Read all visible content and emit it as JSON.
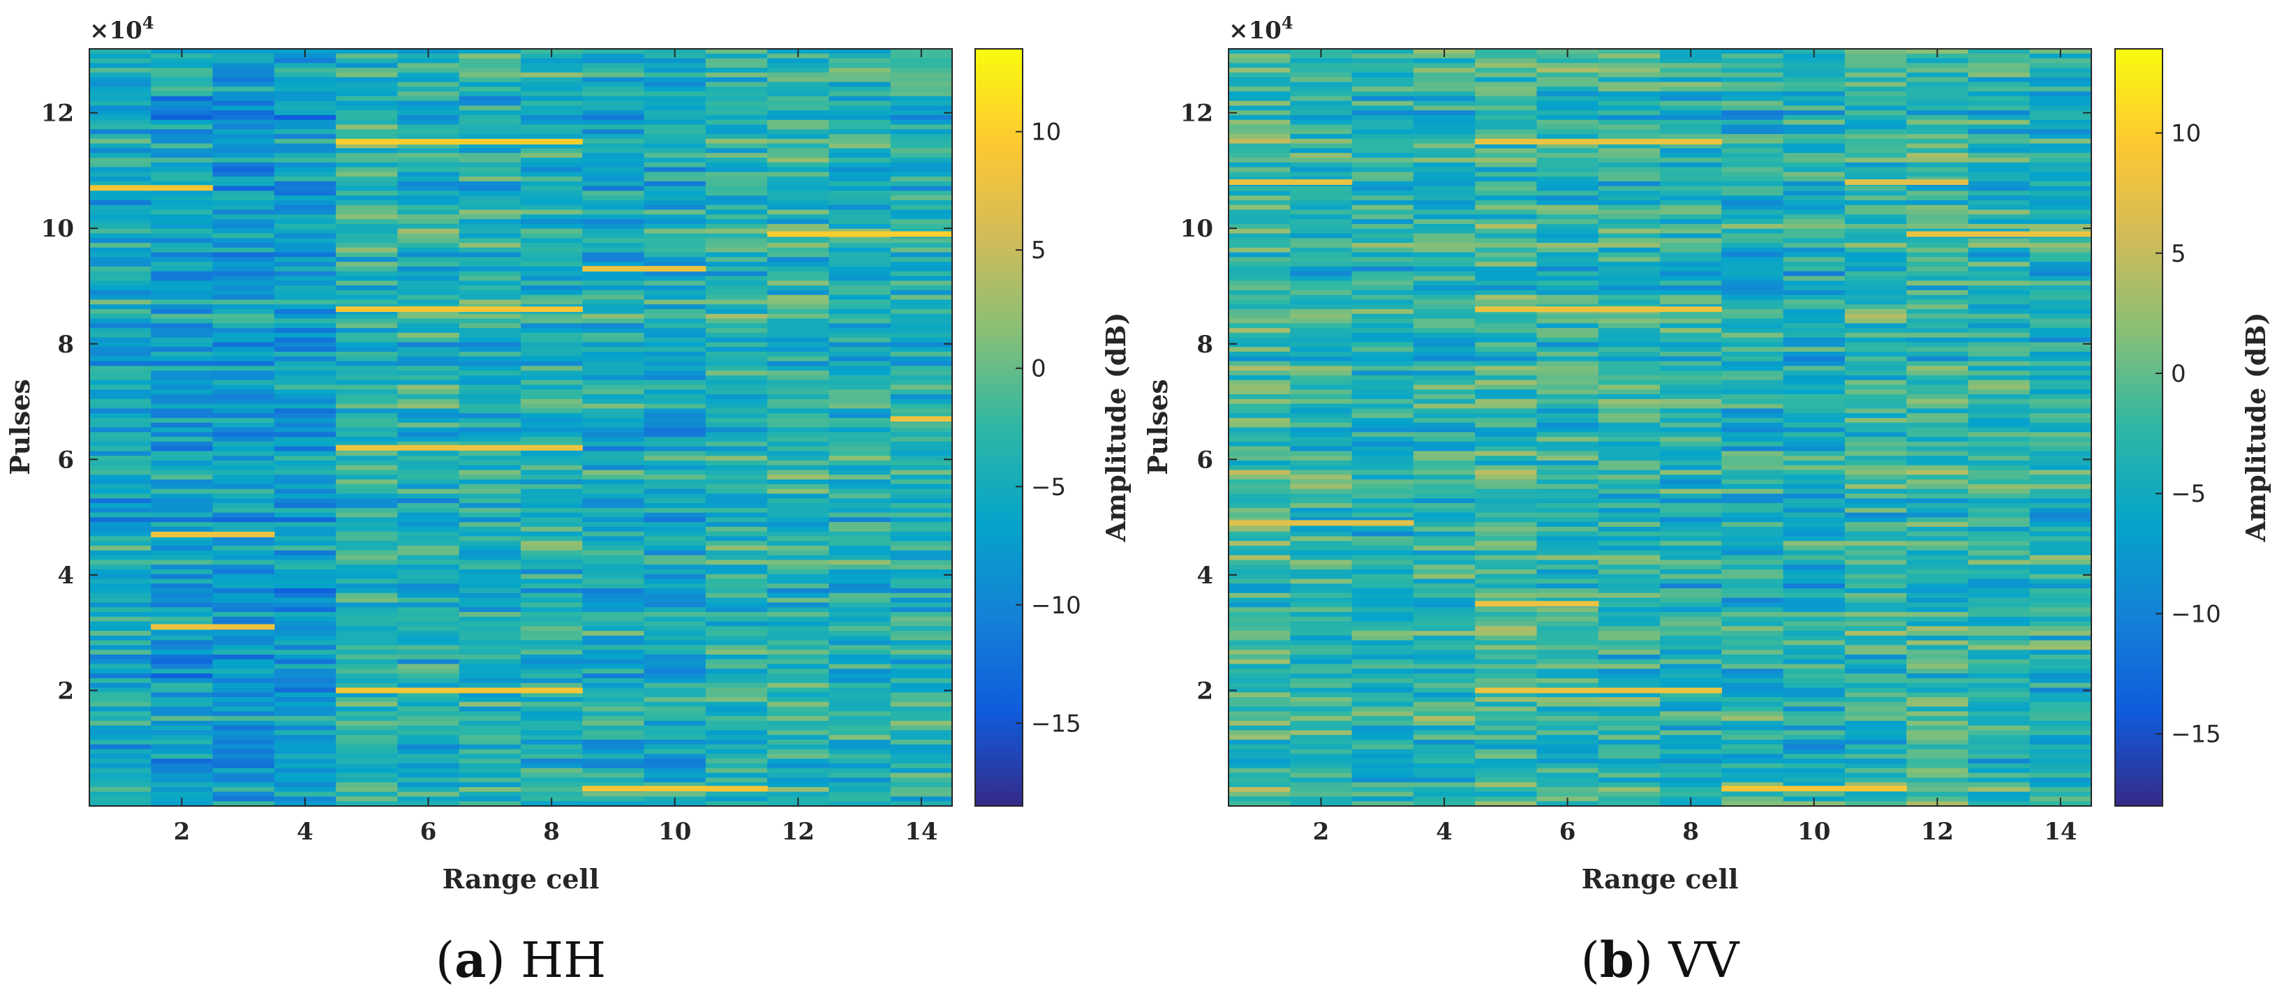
{
  "chart_data": [
    {
      "type": "heatmap",
      "panel": "(a)",
      "caption_letter": "a",
      "caption_text": "HH",
      "xlabel": "Range cell",
      "ylabel": "Pulses",
      "y_multiplier_label": "×10",
      "y_multiplier_exp": "4",
      "xlim": [
        0.5,
        14.5
      ],
      "ylim": [
        0,
        131072
      ],
      "x_ticks": [
        2,
        4,
        6,
        8,
        10,
        12,
        14
      ],
      "x_tick_labels": [
        "2",
        "4",
        "6",
        "8",
        "10",
        "12",
        "14"
      ],
      "y_ticks": [
        20000,
        40000,
        60000,
        80000,
        100000,
        120000
      ],
      "y_tick_labels": [
        "2",
        "4",
        "6",
        "8",
        "10",
        "12"
      ],
      "range_cells": 14,
      "colorbar": {
        "label": "Amplitude (dB)",
        "limits": [
          -18.5,
          13.5
        ],
        "ticks": [
          10,
          5,
          0,
          -5,
          -10,
          -15
        ],
        "tick_labels": [
          "10",
          "5",
          "0",
          "−5",
          "−10",
          "−15"
        ]
      },
      "cell_mean_db": [
        -5.5,
        -7.0,
        -7.5,
        -7.5,
        -3.5,
        -4.0,
        -4.0,
        -4.0,
        -5.0,
        -5.5,
        -3.5,
        -3.5,
        -4.0,
        -4.0
      ],
      "bright_streaks": [
        {
          "cells": [
            1,
            2
          ],
          "pulse": 107000,
          "db": 9
        },
        {
          "cells": [
            5,
            6,
            7,
            8
          ],
          "pulse": 115000,
          "db": 10
        },
        {
          "cells": [
            12,
            13,
            14
          ],
          "pulse": 99000,
          "db": 10
        },
        {
          "cells": [
            5,
            6,
            7,
            8
          ],
          "pulse": 86000,
          "db": 9
        },
        {
          "cells": [
            5,
            6,
            7,
            8
          ],
          "pulse": 62000,
          "db": 8
        },
        {
          "cells": [
            2,
            3
          ],
          "pulse": 47000,
          "db": 8
        },
        {
          "cells": [
            2,
            3
          ],
          "pulse": 31000,
          "db": 8
        },
        {
          "cells": [
            5,
            6,
            7,
            8
          ],
          "pulse": 20000,
          "db": 9
        },
        {
          "cells": [
            9,
            10,
            11
          ],
          "pulse": 3000,
          "db": 9
        },
        {
          "cells": [
            14
          ],
          "pulse": 67000,
          "db": 8
        },
        {
          "cells": [
            9,
            10
          ],
          "pulse": 93000,
          "db": 8
        }
      ]
    },
    {
      "type": "heatmap",
      "panel": "(b)",
      "caption_letter": "b",
      "caption_text": "VV",
      "xlabel": "Range cell",
      "ylabel": "Pulses",
      "y_multiplier_label": "×10",
      "y_multiplier_exp": "4",
      "xlim": [
        0.5,
        14.5
      ],
      "ylim": [
        0,
        131072
      ],
      "x_ticks": [
        2,
        4,
        6,
        8,
        10,
        12,
        14
      ],
      "x_tick_labels": [
        "2",
        "4",
        "6",
        "8",
        "10",
        "12",
        "14"
      ],
      "y_ticks": [
        20000,
        40000,
        60000,
        80000,
        100000,
        120000
      ],
      "y_tick_labels": [
        "2",
        "4",
        "6",
        "8",
        "10",
        "12"
      ],
      "range_cells": 14,
      "colorbar": {
        "label": "Amplitude (dB)",
        "limits": [
          -18,
          13.5
        ],
        "ticks": [
          10,
          5,
          0,
          -5,
          -10,
          -15
        ],
        "tick_labels": [
          "10",
          "5",
          "0",
          "−5",
          "−10",
          "−15"
        ]
      },
      "cell_mean_db": [
        -1.5,
        -2.5,
        -3.5,
        -3.0,
        -2.5,
        -3.0,
        -3.0,
        -3.5,
        -4.0,
        -4.0,
        -2.5,
        -2.5,
        -3.0,
        -3.5
      ],
      "bright_streaks": [
        {
          "cells": [
            1,
            2
          ],
          "pulse": 108000,
          "db": 8
        },
        {
          "cells": [
            5,
            6,
            7,
            8
          ],
          "pulse": 115000,
          "db": 8
        },
        {
          "cells": [
            12,
            13,
            14
          ],
          "pulse": 99000,
          "db": 8
        },
        {
          "cells": [
            5,
            6,
            7,
            8
          ],
          "pulse": 86000,
          "db": 8
        },
        {
          "cells": [
            1,
            2,
            3
          ],
          "pulse": 49000,
          "db": 7
        },
        {
          "cells": [
            5,
            6
          ],
          "pulse": 35000,
          "db": 8
        },
        {
          "cells": [
            5,
            6,
            7,
            8
          ],
          "pulse": 20000,
          "db": 8
        },
        {
          "cells": [
            9,
            10,
            11
          ],
          "pulse": 3000,
          "db": 9
        },
        {
          "cells": [
            11,
            12
          ],
          "pulse": 108000,
          "db": 7
        }
      ]
    }
  ]
}
